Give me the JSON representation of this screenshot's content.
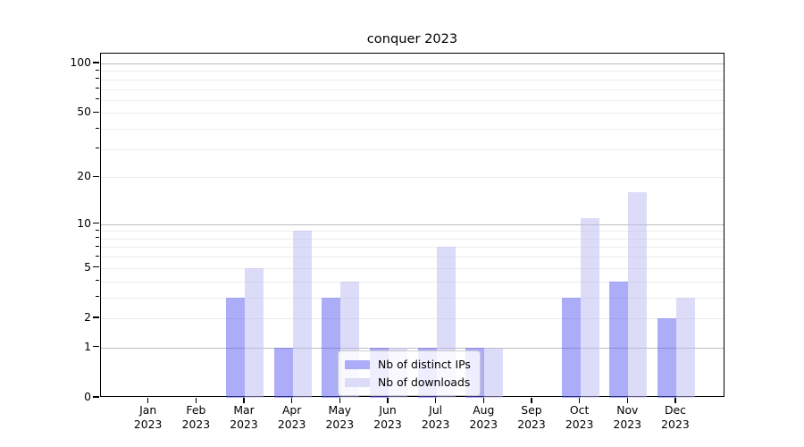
{
  "title": "conquer 2023",
  "chart_data": {
    "type": "bar",
    "title": "conquer 2023",
    "categories": [
      "Jan",
      "Feb",
      "Mar",
      "Apr",
      "May",
      "Jun",
      "Jul",
      "Aug",
      "Sep",
      "Oct",
      "Nov",
      "Dec"
    ],
    "year": "2023",
    "series": [
      {
        "name": "Nb of distinct IPs",
        "color": "rgba(89,89,243,0.5)",
        "legend_color": "#acacf9",
        "values": [
          0,
          0,
          3,
          1,
          3,
          1,
          1,
          1,
          0,
          3,
          4,
          2
        ]
      },
      {
        "name": "Nb of downloads",
        "color": "rgba(185,185,241,0.5)",
        "legend_color": "#dcdcf8",
        "values": [
          0,
          0,
          5,
          9,
          4,
          1,
          7,
          1,
          0,
          11,
          16,
          3
        ]
      }
    ],
    "xlabel": "",
    "ylabel": "",
    "yscale": "log1p",
    "yticks_major": [
      0,
      1,
      2,
      5,
      10,
      20,
      50,
      100
    ],
    "gridline_values_minor": [
      2,
      3,
      4,
      5,
      6,
      7,
      8,
      9,
      20,
      30,
      40,
      50,
      60,
      70,
      80,
      90
    ],
    "gridline_values_decade": [
      1,
      10,
      100
    ],
    "yticks_minor": [
      3,
      4,
      6,
      7,
      8,
      9,
      30,
      40,
      60,
      70,
      80,
      90
    ],
    "ylim": [
      0,
      112
    ],
    "grid": "horizontal",
    "legend_position": "lower center",
    "colors": {
      "decade_gridline": "#bdbdbd",
      "minor_gridline": "#ececec",
      "axis": "#000000"
    }
  }
}
